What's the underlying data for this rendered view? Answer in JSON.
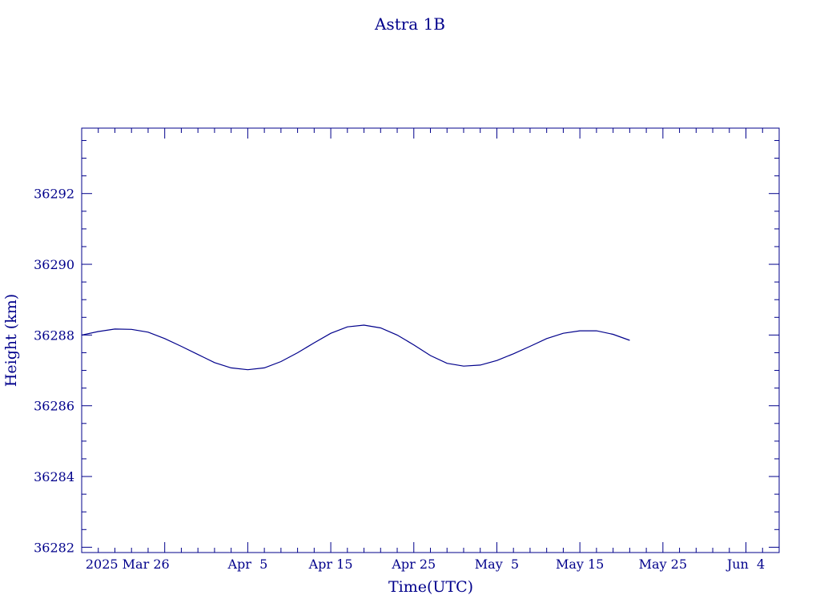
{
  "chart_data": {
    "type": "line",
    "title": "Astra 1B",
    "xlabel": "Time(UTC)",
    "ylabel": "Height (km)",
    "x_ticks": [
      {
        "date": "2025-03-26",
        "label": "2025 Mar 26"
      },
      {
        "date": "2025-04-05",
        "label": "Apr  5"
      },
      {
        "date": "2025-04-15",
        "label": "Apr 15"
      },
      {
        "date": "2025-04-25",
        "label": "Apr 25"
      },
      {
        "date": "2025-05-05",
        "label": "May  5"
      },
      {
        "date": "2025-05-15",
        "label": "May 15"
      },
      {
        "date": "2025-05-25",
        "label": "May 25"
      },
      {
        "date": "2025-06-04",
        "label": "Jun  4"
      }
    ],
    "y_ticks": [
      {
        "value": 36282,
        "label": "36282"
      },
      {
        "value": 36284,
        "label": "36284"
      },
      {
        "value": 36286,
        "label": "36286"
      },
      {
        "value": 36288,
        "label": "36288"
      },
      {
        "value": 36290,
        "label": "36290"
      },
      {
        "value": 36292,
        "label": "36292"
      }
    ],
    "xlim": [
      "2025-03-16",
      "2025-06-08"
    ],
    "ylim": [
      36281.85,
      36293.85
    ],
    "grid": false,
    "color": "#00008b",
    "series": [
      {
        "x": [
          "2025-03-16",
          "2025-03-18",
          "2025-03-20",
          "2025-03-22",
          "2025-03-24",
          "2025-03-26",
          "2025-03-28",
          "2025-03-30",
          "2025-04-01",
          "2025-04-03",
          "2025-04-05",
          "2025-04-07",
          "2025-04-09",
          "2025-04-11",
          "2025-04-13",
          "2025-04-15",
          "2025-04-17",
          "2025-04-19",
          "2025-04-21",
          "2025-04-23",
          "2025-04-25",
          "2025-04-27",
          "2025-04-29",
          "2025-05-01",
          "2025-05-03",
          "2025-05-05",
          "2025-05-07",
          "2025-05-09",
          "2025-05-11",
          "2025-05-13",
          "2025-05-15",
          "2025-05-17",
          "2025-05-19",
          "2025-05-21"
        ],
        "y": [
          36288.0,
          36288.1,
          36288.17,
          36288.16,
          36288.08,
          36287.9,
          36287.68,
          36287.45,
          36287.22,
          36287.07,
          36287.02,
          36287.07,
          36287.25,
          36287.5,
          36287.78,
          36288.05,
          36288.23,
          36288.28,
          36288.2,
          36288.0,
          36287.72,
          36287.42,
          36287.2,
          36287.12,
          36287.15,
          36287.28,
          36287.47,
          36287.68,
          36287.9,
          36288.05,
          36288.12,
          36288.12,
          36288.02,
          36287.85
        ]
      }
    ]
  }
}
